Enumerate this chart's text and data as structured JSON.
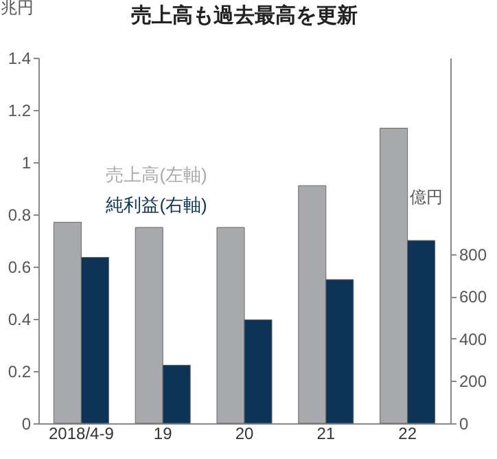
{
  "chart_data": {
    "type": "bar",
    "title": "売上高も過去最高を更新",
    "ylabel": "兆円",
    "y2label": "億円",
    "categories": [
      "2018/4-9",
      "19",
      "20",
      "21",
      "22"
    ],
    "series": [
      {
        "name": "売上高(左軸)",
        "color": "#a7a9ac",
        "values": [
          0.77,
          0.75,
          0.75,
          0.91,
          1.13
        ]
      },
      {
        "name": "純利益(右軸)",
        "color": "#0d3457",
        "axis": "y2",
        "values": [
          785,
          275,
          490,
          680,
          865
        ]
      }
    ],
    "ylim": [
      0,
      1.4
    ],
    "yticks": [
      0,
      0.2,
      0.4,
      0.6,
      0.8,
      1.0,
      1.2,
      1.4
    ],
    "y2lim": [
      0,
      1730
    ],
    "y2ticks": [
      0,
      200,
      400,
      600,
      800
    ]
  }
}
